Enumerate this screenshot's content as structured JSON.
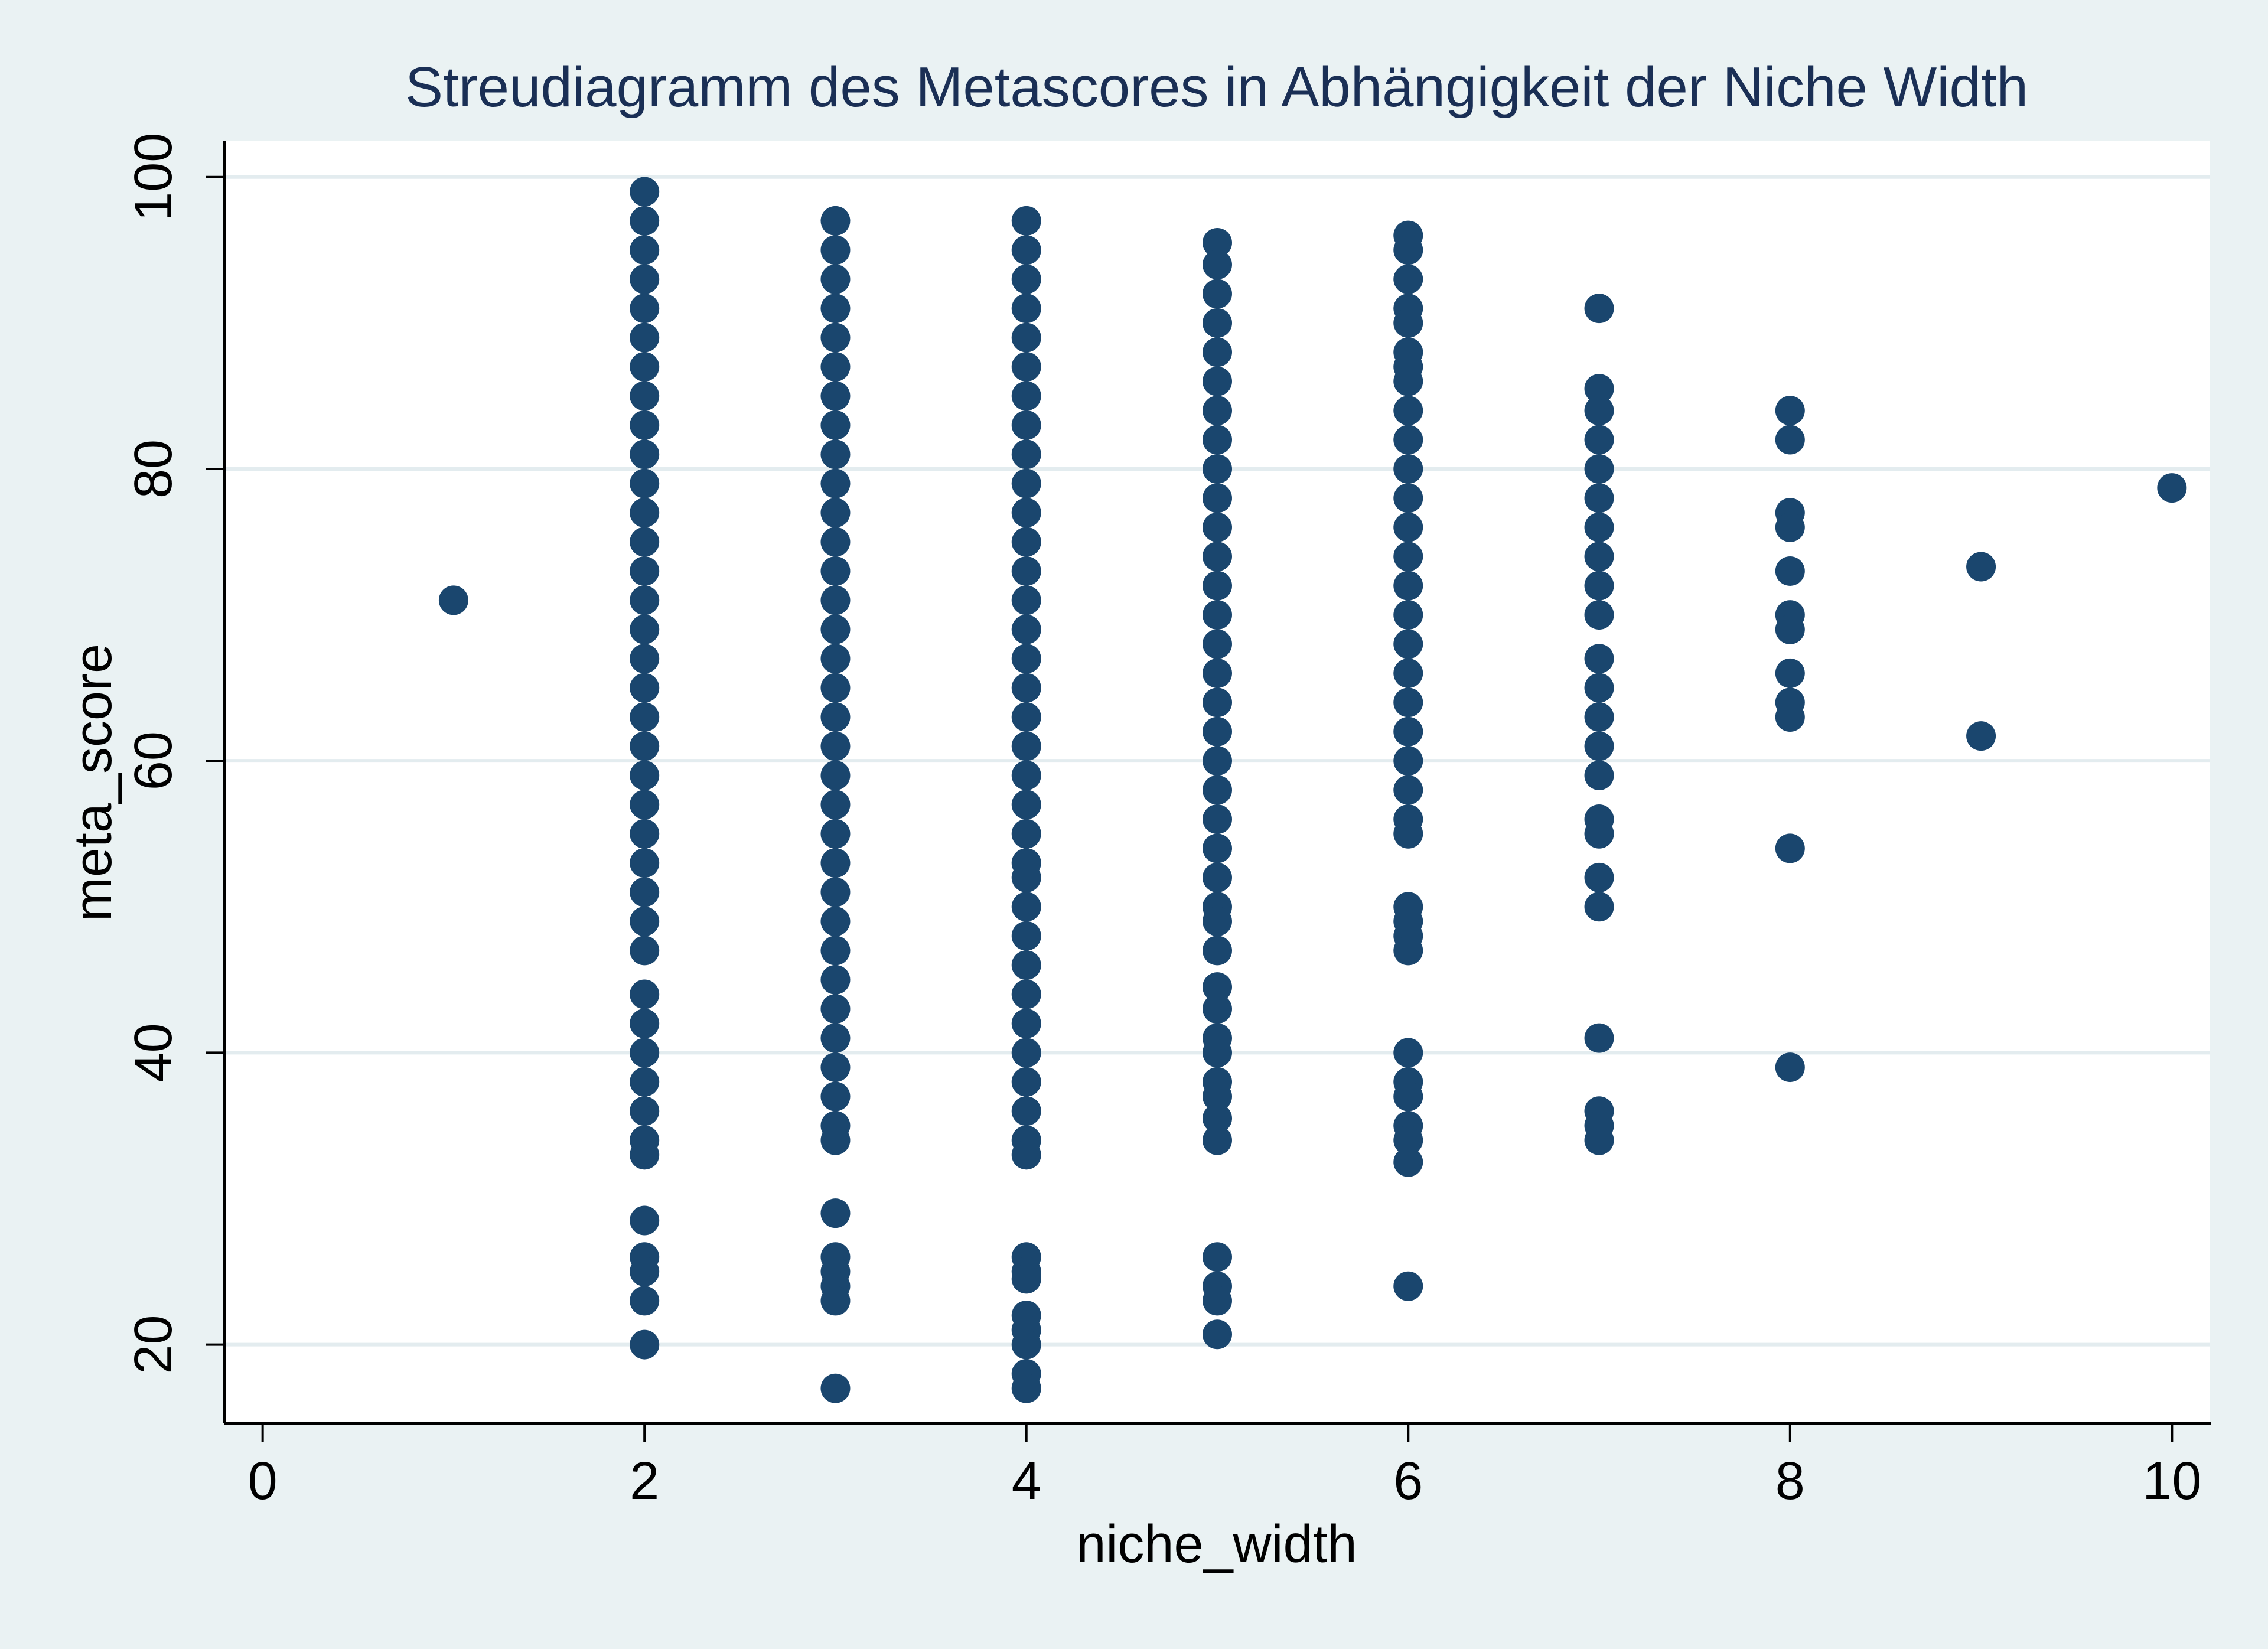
{
  "chart_data": {
    "type": "scatter",
    "title": "Streudiagramm des Metascores in Abhängigkeit der Niche Width",
    "xlabel": "niche_width",
    "ylabel": "meta_score",
    "xlim": [
      -0.2,
      10.2
    ],
    "ylim": [
      14.6,
      102.5
    ],
    "xticks": [
      "0",
      "2",
      "4",
      "6",
      "8",
      "10"
    ],
    "yticks": [
      "20",
      "40",
      "60",
      "80",
      "100"
    ],
    "grid": "horizontal",
    "legend": "none",
    "colors": {
      "marker": "#1a466e",
      "plot_bg": "#ffffff",
      "page_bg": "#eaf2f3",
      "grid": "#e3ecef",
      "title": "#1a2f55"
    },
    "series": [
      {
        "points": [
          {
            "x": 1,
            "y": 71
          },
          {
            "x": 2,
            "y": 99
          },
          {
            "x": 2,
            "y": 97
          },
          {
            "x": 2,
            "y": 95
          },
          {
            "x": 2,
            "y": 93
          },
          {
            "x": 2,
            "y": 91
          },
          {
            "x": 2,
            "y": 89
          },
          {
            "x": 2,
            "y": 87
          },
          {
            "x": 2,
            "y": 85
          },
          {
            "x": 2,
            "y": 83
          },
          {
            "x": 2,
            "y": 81
          },
          {
            "x": 2,
            "y": 79
          },
          {
            "x": 2,
            "y": 77
          },
          {
            "x": 2,
            "y": 75
          },
          {
            "x": 2,
            "y": 73
          },
          {
            "x": 2,
            "y": 71
          },
          {
            "x": 2,
            "y": 69
          },
          {
            "x": 2,
            "y": 67
          },
          {
            "x": 2,
            "y": 65
          },
          {
            "x": 2,
            "y": 63
          },
          {
            "x": 2,
            "y": 61
          },
          {
            "x": 2,
            "y": 59
          },
          {
            "x": 2,
            "y": 57
          },
          {
            "x": 2,
            "y": 55
          },
          {
            "x": 2,
            "y": 53
          },
          {
            "x": 2,
            "y": 51
          },
          {
            "x": 2,
            "y": 49
          },
          {
            "x": 2,
            "y": 47
          },
          {
            "x": 2,
            "y": 44
          },
          {
            "x": 2,
            "y": 42
          },
          {
            "x": 2,
            "y": 40
          },
          {
            "x": 2,
            "y": 38
          },
          {
            "x": 2,
            "y": 36
          },
          {
            "x": 2,
            "y": 34
          },
          {
            "x": 2,
            "y": 33
          },
          {
            "x": 2,
            "y": 28.5
          },
          {
            "x": 2,
            "y": 26
          },
          {
            "x": 2,
            "y": 25
          },
          {
            "x": 2,
            "y": 23
          },
          {
            "x": 2,
            "y": 20
          },
          {
            "x": 3,
            "y": 97
          },
          {
            "x": 3,
            "y": 95
          },
          {
            "x": 3,
            "y": 93
          },
          {
            "x": 3,
            "y": 91
          },
          {
            "x": 3,
            "y": 89
          },
          {
            "x": 3,
            "y": 87
          },
          {
            "x": 3,
            "y": 85
          },
          {
            "x": 3,
            "y": 83
          },
          {
            "x": 3,
            "y": 81
          },
          {
            "x": 3,
            "y": 79
          },
          {
            "x": 3,
            "y": 77
          },
          {
            "x": 3,
            "y": 75
          },
          {
            "x": 3,
            "y": 73
          },
          {
            "x": 3,
            "y": 71
          },
          {
            "x": 3,
            "y": 69
          },
          {
            "x": 3,
            "y": 67
          },
          {
            "x": 3,
            "y": 65
          },
          {
            "x": 3,
            "y": 63
          },
          {
            "x": 3,
            "y": 61
          },
          {
            "x": 3,
            "y": 59
          },
          {
            "x": 3,
            "y": 57
          },
          {
            "x": 3,
            "y": 55
          },
          {
            "x": 3,
            "y": 53
          },
          {
            "x": 3,
            "y": 51
          },
          {
            "x": 3,
            "y": 49
          },
          {
            "x": 3,
            "y": 47
          },
          {
            "x": 3,
            "y": 45
          },
          {
            "x": 3,
            "y": 43
          },
          {
            "x": 3,
            "y": 41
          },
          {
            "x": 3,
            "y": 39
          },
          {
            "x": 3,
            "y": 37
          },
          {
            "x": 3,
            "y": 35
          },
          {
            "x": 3,
            "y": 34
          },
          {
            "x": 3,
            "y": 29
          },
          {
            "x": 3,
            "y": 26
          },
          {
            "x": 3,
            "y": 25
          },
          {
            "x": 3,
            "y": 24
          },
          {
            "x": 3,
            "y": 23
          },
          {
            "x": 3,
            "y": 17
          },
          {
            "x": 4,
            "y": 97
          },
          {
            "x": 4,
            "y": 95
          },
          {
            "x": 4,
            "y": 93
          },
          {
            "x": 4,
            "y": 91
          },
          {
            "x": 4,
            "y": 89
          },
          {
            "x": 4,
            "y": 87
          },
          {
            "x": 4,
            "y": 85
          },
          {
            "x": 4,
            "y": 83
          },
          {
            "x": 4,
            "y": 81
          },
          {
            "x": 4,
            "y": 79
          },
          {
            "x": 4,
            "y": 77
          },
          {
            "x": 4,
            "y": 75
          },
          {
            "x": 4,
            "y": 73
          },
          {
            "x": 4,
            "y": 71
          },
          {
            "x": 4,
            "y": 69
          },
          {
            "x": 4,
            "y": 67
          },
          {
            "x": 4,
            "y": 65
          },
          {
            "x": 4,
            "y": 63
          },
          {
            "x": 4,
            "y": 61
          },
          {
            "x": 4,
            "y": 59
          },
          {
            "x": 4,
            "y": 57
          },
          {
            "x": 4,
            "y": 55
          },
          {
            "x": 4,
            "y": 53
          },
          {
            "x": 4,
            "y": 52
          },
          {
            "x": 4,
            "y": 50
          },
          {
            "x": 4,
            "y": 48
          },
          {
            "x": 4,
            "y": 46
          },
          {
            "x": 4,
            "y": 44
          },
          {
            "x": 4,
            "y": 42
          },
          {
            "x": 4,
            "y": 40
          },
          {
            "x": 4,
            "y": 38
          },
          {
            "x": 4,
            "y": 36
          },
          {
            "x": 4,
            "y": 34
          },
          {
            "x": 4,
            "y": 33
          },
          {
            "x": 4,
            "y": 26
          },
          {
            "x": 4,
            "y": 25
          },
          {
            "x": 4,
            "y": 24.5
          },
          {
            "x": 4,
            "y": 22
          },
          {
            "x": 4,
            "y": 21
          },
          {
            "x": 4,
            "y": 20
          },
          {
            "x": 4,
            "y": 18
          },
          {
            "x": 4,
            "y": 17
          },
          {
            "x": 5,
            "y": 95.5
          },
          {
            "x": 5,
            "y": 94
          },
          {
            "x": 5,
            "y": 92
          },
          {
            "x": 5,
            "y": 90
          },
          {
            "x": 5,
            "y": 88
          },
          {
            "x": 5,
            "y": 86
          },
          {
            "x": 5,
            "y": 84
          },
          {
            "x": 5,
            "y": 82
          },
          {
            "x": 5,
            "y": 80
          },
          {
            "x": 5,
            "y": 78
          },
          {
            "x": 5,
            "y": 76
          },
          {
            "x": 5,
            "y": 74
          },
          {
            "x": 5,
            "y": 72
          },
          {
            "x": 5,
            "y": 70
          },
          {
            "x": 5,
            "y": 68
          },
          {
            "x": 5,
            "y": 66
          },
          {
            "x": 5,
            "y": 64
          },
          {
            "x": 5,
            "y": 62
          },
          {
            "x": 5,
            "y": 60
          },
          {
            "x": 5,
            "y": 58
          },
          {
            "x": 5,
            "y": 56
          },
          {
            "x": 5,
            "y": 54
          },
          {
            "x": 5,
            "y": 52
          },
          {
            "x": 5,
            "y": 50
          },
          {
            "x": 5,
            "y": 49
          },
          {
            "x": 5,
            "y": 47
          },
          {
            "x": 5,
            "y": 44.5
          },
          {
            "x": 5,
            "y": 43
          },
          {
            "x": 5,
            "y": 41
          },
          {
            "x": 5,
            "y": 40
          },
          {
            "x": 5,
            "y": 38
          },
          {
            "x": 5,
            "y": 37
          },
          {
            "x": 5,
            "y": 35.5
          },
          {
            "x": 5,
            "y": 34
          },
          {
            "x": 5,
            "y": 26
          },
          {
            "x": 5,
            "y": 24
          },
          {
            "x": 5,
            "y": 23
          },
          {
            "x": 5,
            "y": 20.7
          },
          {
            "x": 6,
            "y": 96
          },
          {
            "x": 6,
            "y": 95
          },
          {
            "x": 6,
            "y": 93
          },
          {
            "x": 6,
            "y": 91
          },
          {
            "x": 6,
            "y": 90
          },
          {
            "x": 6,
            "y": 88
          },
          {
            "x": 6,
            "y": 87
          },
          {
            "x": 6,
            "y": 86
          },
          {
            "x": 6,
            "y": 84
          },
          {
            "x": 6,
            "y": 82
          },
          {
            "x": 6,
            "y": 80
          },
          {
            "x": 6,
            "y": 78
          },
          {
            "x": 6,
            "y": 76
          },
          {
            "x": 6,
            "y": 74
          },
          {
            "x": 6,
            "y": 72
          },
          {
            "x": 6,
            "y": 70
          },
          {
            "x": 6,
            "y": 68
          },
          {
            "x": 6,
            "y": 66
          },
          {
            "x": 6,
            "y": 64
          },
          {
            "x": 6,
            "y": 62
          },
          {
            "x": 6,
            "y": 60
          },
          {
            "x": 6,
            "y": 58
          },
          {
            "x": 6,
            "y": 56
          },
          {
            "x": 6,
            "y": 55
          },
          {
            "x": 6,
            "y": 50
          },
          {
            "x": 6,
            "y": 49
          },
          {
            "x": 6,
            "y": 48
          },
          {
            "x": 6,
            "y": 47
          },
          {
            "x": 6,
            "y": 40
          },
          {
            "x": 6,
            "y": 38
          },
          {
            "x": 6,
            "y": 37
          },
          {
            "x": 6,
            "y": 35
          },
          {
            "x": 6,
            "y": 34
          },
          {
            "x": 6,
            "y": 32.5
          },
          {
            "x": 6,
            "y": 24
          },
          {
            "x": 7,
            "y": 91
          },
          {
            "x": 7,
            "y": 85.5
          },
          {
            "x": 7,
            "y": 84
          },
          {
            "x": 7,
            "y": 82
          },
          {
            "x": 7,
            "y": 80
          },
          {
            "x": 7,
            "y": 78
          },
          {
            "x": 7,
            "y": 76
          },
          {
            "x": 7,
            "y": 74
          },
          {
            "x": 7,
            "y": 72
          },
          {
            "x": 7,
            "y": 70
          },
          {
            "x": 7,
            "y": 67
          },
          {
            "x": 7,
            "y": 65
          },
          {
            "x": 7,
            "y": 63
          },
          {
            "x": 7,
            "y": 61
          },
          {
            "x": 7,
            "y": 59
          },
          {
            "x": 7,
            "y": 56
          },
          {
            "x": 7,
            "y": 55
          },
          {
            "x": 7,
            "y": 52
          },
          {
            "x": 7,
            "y": 50
          },
          {
            "x": 7,
            "y": 41
          },
          {
            "x": 7,
            "y": 36
          },
          {
            "x": 7,
            "y": 35
          },
          {
            "x": 7,
            "y": 34
          },
          {
            "x": 8,
            "y": 84
          },
          {
            "x": 8,
            "y": 82
          },
          {
            "x": 8,
            "y": 77
          },
          {
            "x": 8,
            "y": 76
          },
          {
            "x": 8,
            "y": 73
          },
          {
            "x": 8,
            "y": 70
          },
          {
            "x": 8,
            "y": 69
          },
          {
            "x": 8,
            "y": 66
          },
          {
            "x": 8,
            "y": 64
          },
          {
            "x": 8,
            "y": 63
          },
          {
            "x": 8,
            "y": 54
          },
          {
            "x": 8,
            "y": 39
          },
          {
            "x": 9,
            "y": 73.3
          },
          {
            "x": 9,
            "y": 61.7
          },
          {
            "x": 10,
            "y": 78.7
          }
        ]
      }
    ]
  }
}
